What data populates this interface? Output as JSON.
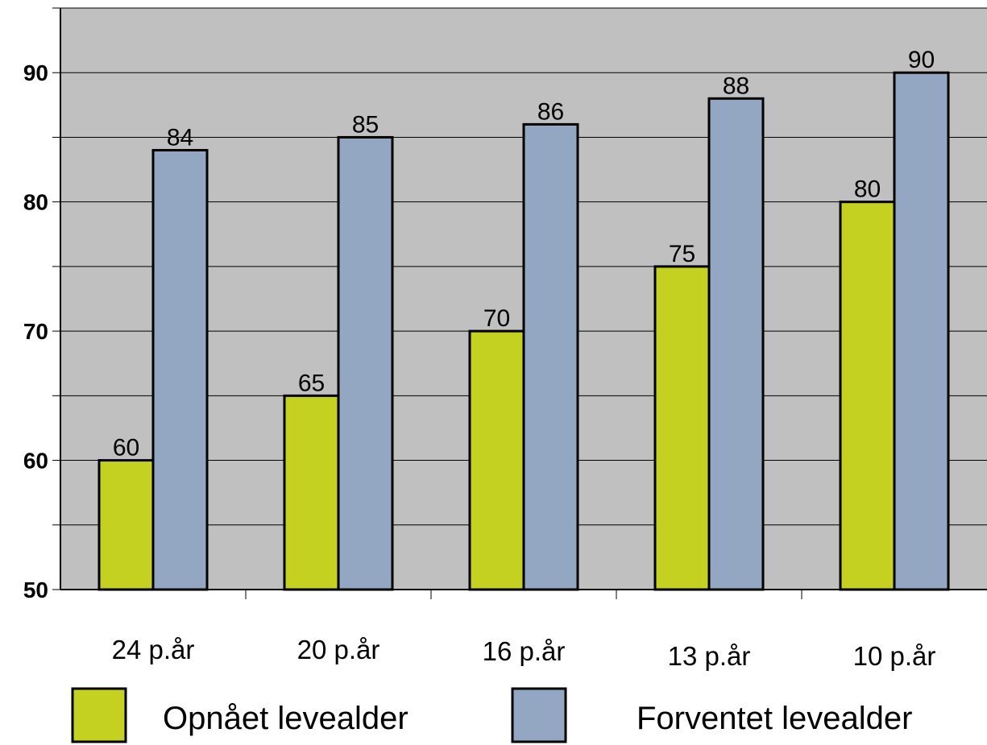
{
  "chart_data": {
    "type": "bar",
    "categories": [
      "24 p.år",
      "20 p.år",
      "16 p.år",
      "13 p.år",
      "10 p.år"
    ],
    "series": [
      {
        "name": "Opnået levealder",
        "values": [
          60,
          65,
          70,
          75,
          80
        ],
        "color": "#c4d121"
      },
      {
        "name": "Forventet levealder",
        "values": [
          84,
          85,
          86,
          88,
          90
        ],
        "color": "#93a7c2"
      }
    ],
    "ylim": [
      50,
      95
    ],
    "yticks": [
      50,
      60,
      70,
      80,
      90
    ],
    "grid": true,
    "legend": "bottom",
    "plot_background": "#c0c0c0"
  }
}
